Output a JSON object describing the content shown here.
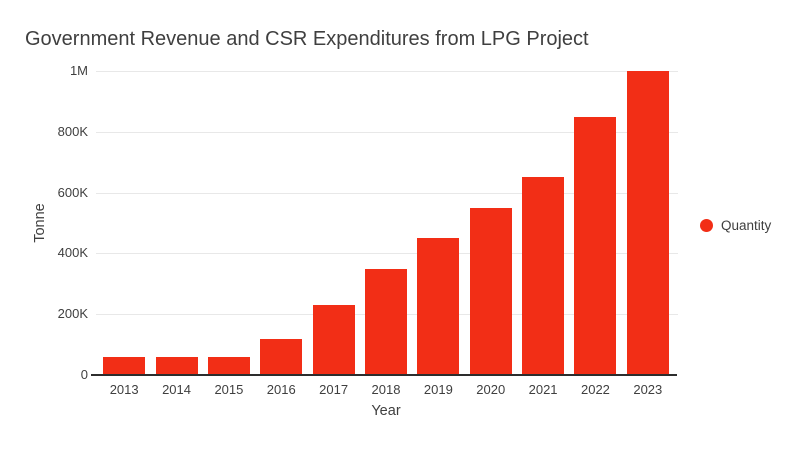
{
  "chart_data": {
    "type": "bar",
    "title": "Government Revenue and CSR Expenditures from LPG Project",
    "xlabel": "Year",
    "ylabel": "Tonne",
    "categories": [
      "2013",
      "2014",
      "2015",
      "2016",
      "2017",
      "2018",
      "2019",
      "2020",
      "2021",
      "2022",
      "2023"
    ],
    "series": [
      {
        "name": "Quantity",
        "values": [
          60000,
          60000,
          60000,
          120000,
          230000,
          350000,
          450000,
          550000,
          650000,
          850000,
          1000000
        ]
      }
    ],
    "ylim": [
      0,
      1000000
    ],
    "yticks": [
      {
        "value": 0,
        "label": "0"
      },
      {
        "value": 200000,
        "label": "200K"
      },
      {
        "value": 400000,
        "label": "400K"
      },
      {
        "value": 600000,
        "label": "600K"
      },
      {
        "value": 800000,
        "label": "800K"
      },
      {
        "value": 1000000,
        "label": "1M"
      }
    ],
    "grid": true,
    "legend_position": "right",
    "colors": {
      "bar": "#f22e16",
      "text": "#3f3f3f",
      "grid": "#e8e8e8",
      "axis": "#2d2d2d",
      "background": "#ffffff"
    }
  }
}
